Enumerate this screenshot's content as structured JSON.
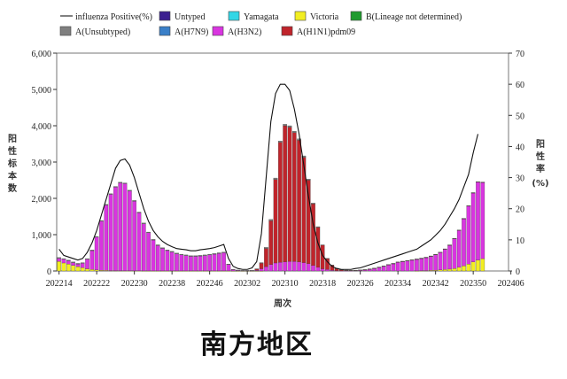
{
  "legend": [
    {
      "label": "influenza Positive(%)",
      "color": "#000000",
      "kind": "line"
    },
    {
      "label": "Untyped",
      "color": "#3b1f8f",
      "kind": "box"
    },
    {
      "label": "Yamagata",
      "color": "#33d6e6",
      "kind": "box"
    },
    {
      "label": "Victoria",
      "color": "#f2ee22",
      "kind": "box"
    },
    {
      "label": "B(Lineage not determined)",
      "color": "#1f9a2e",
      "kind": "box"
    },
    {
      "label": "A(Unsubtyped)",
      "color": "#7f7f7f",
      "kind": "box"
    },
    {
      "label": "A(H7N9)",
      "color": "#3a7fc8",
      "kind": "box"
    },
    {
      "label": "A(H3N2)",
      "color": "#d935e0",
      "kind": "box"
    },
    {
      "label": "A(H1N1)pdm09",
      "color": "#c0242b",
      "kind": "box"
    }
  ],
  "region_title": "南方地区",
  "chart_data": {
    "type": "bar",
    "stacked": true,
    "xlabel": "周次",
    "ylabel_left": "阳性标本数",
    "ylabel_right": "阳性率(%)",
    "y_left_lim": [
      0,
      6000
    ],
    "y_left_ticks": [
      "0",
      "1,000",
      "2,000",
      "3,000",
      "4,000",
      "5,000",
      "6,000"
    ],
    "y_right_lim": [
      0,
      70
    ],
    "y_right_ticks": [
      "0",
      "10",
      "20",
      "30",
      "40",
      "50",
      "60",
      "70"
    ],
    "x_tick_labels": [
      "202214",
      "202222",
      "202230",
      "202238",
      "202246",
      "202302",
      "202310",
      "202318",
      "202326",
      "202334",
      "202342",
      "202350",
      "202406"
    ],
    "n_weeks": 96,
    "series": [
      {
        "name": "Victoria",
        "color": "#f2ee22",
        "values": [
          260,
          220,
          190,
          150,
          120,
          90,
          60,
          40,
          30,
          20,
          15,
          10,
          8,
          6,
          5,
          4,
          3,
          3,
          2,
          2,
          2,
          2,
          2,
          2,
          2,
          2,
          2,
          2,
          2,
          2,
          2,
          2,
          2,
          2,
          2,
          2,
          2,
          1,
          1,
          1,
          1,
          1,
          1,
          1,
          0,
          0,
          0,
          0,
          0,
          0,
          0,
          0,
          0,
          0,
          0,
          0,
          0,
          0,
          0,
          0,
          0,
          0,
          0,
          0,
          0,
          0,
          0,
          0,
          0,
          0,
          0,
          0,
          0,
          0,
          0,
          0,
          2,
          5,
          10,
          15,
          20,
          30,
          40,
          50,
          70,
          100,
          140,
          190,
          250,
          300,
          340,
          0,
          0,
          0,
          0,
          0
        ]
      },
      {
        "name": "A(H3N2)",
        "color": "#d935e0",
        "values": [
          90,
          100,
          90,
          80,
          70,
          120,
          260,
          520,
          900,
          1350,
          1800,
          2100,
          2300,
          2420,
          2400,
          2200,
          1920,
          1600,
          1300,
          1050,
          850,
          700,
          620,
          560,
          520,
          470,
          440,
          420,
          400,
          400,
          410,
          420,
          440,
          460,
          480,
          500,
          180,
          40,
          20,
          10,
          10,
          10,
          20,
          60,
          120,
          180,
          220,
          240,
          250,
          260,
          260,
          250,
          230,
          200,
          150,
          100,
          60,
          40,
          20,
          10,
          5,
          5,
          5,
          10,
          20,
          30,
          50,
          70,
          100,
          130,
          170,
          200,
          240,
          260,
          280,
          300,
          320,
          340,
          360,
          390,
          430,
          480,
          560,
          660,
          820,
          1020,
          1300,
          1600,
          1900,
          2150,
          2100,
          0,
          0,
          0,
          0,
          0
        ]
      },
      {
        "name": "A(H1N1)pdm09",
        "color": "#c0242b",
        "values": [
          0,
          0,
          0,
          0,
          0,
          0,
          0,
          0,
          0,
          0,
          0,
          0,
          0,
          0,
          0,
          0,
          0,
          0,
          0,
          0,
          0,
          0,
          0,
          0,
          0,
          0,
          0,
          0,
          0,
          0,
          0,
          0,
          0,
          0,
          0,
          0,
          0,
          0,
          0,
          0,
          0,
          0,
          30,
          150,
          500,
          1200,
          2300,
          3300,
          3750,
          3700,
          3550,
          3350,
          2900,
          2300,
          1700,
          1100,
          650,
          300,
          140,
          60,
          30,
          15,
          10,
          5,
          5,
          5,
          5,
          5,
          5,
          5,
          5,
          5,
          5,
          5,
          5,
          5,
          5,
          5,
          5,
          5,
          5,
          5,
          5,
          5,
          5,
          5,
          5,
          5,
          5,
          5,
          5,
          0,
          0,
          0,
          0,
          0
        ]
      },
      {
        "name": "A(Unsubtyped)",
        "color": "#7f7f7f",
        "values": [
          20,
          20,
          20,
          20,
          20,
          20,
          20,
          20,
          20,
          20,
          20,
          20,
          20,
          20,
          20,
          20,
          20,
          20,
          20,
          20,
          20,
          20,
          20,
          20,
          20,
          20,
          20,
          20,
          20,
          20,
          20,
          20,
          20,
          20,
          20,
          20,
          10,
          5,
          5,
          5,
          5,
          5,
          10,
          20,
          30,
          40,
          40,
          40,
          40,
          40,
          40,
          40,
          40,
          30,
          20,
          20,
          10,
          10,
          5,
          5,
          5,
          5,
          5,
          5,
          5,
          5,
          5,
          5,
          5,
          5,
          5,
          5,
          5,
          5,
          5,
          5,
          5,
          5,
          5,
          5,
          5,
          5,
          5,
          5,
          5,
          5,
          5,
          5,
          5,
          5,
          5,
          0,
          0,
          0,
          0,
          0
        ]
      }
    ],
    "positive_rate": [
      7,
      5,
      4.5,
      4,
      3.5,
      4,
      6,
      9,
      13,
      18,
      23,
      28,
      33,
      35.5,
      36,
      34,
      30,
      25,
      20,
      16,
      13,
      11,
      9.5,
      8.5,
      7.8,
      7.2,
      7,
      6.8,
      6.5,
      6.5,
      6.8,
      7,
      7.2,
      7.5,
      8,
      8.5,
      4,
      1.5,
      0.8,
      0.5,
      0.5,
      1,
      3,
      12,
      30,
      48,
      57,
      60,
      60,
      58,
      52,
      44,
      34,
      24,
      15,
      9,
      5,
      3,
      1.5,
      0.8,
      0.5,
      0.5,
      0.5,
      0.8,
      1,
      1.5,
      2,
      2.5,
      3,
      3.5,
      4,
      4.5,
      5,
      5.5,
      6,
      6.5,
      7,
      8,
      9,
      10,
      11.5,
      13,
      15,
      17.5,
      20,
      23,
      27,
      31,
      38,
      44,
      null,
      null,
      null,
      null,
      null,
      null
    ]
  }
}
